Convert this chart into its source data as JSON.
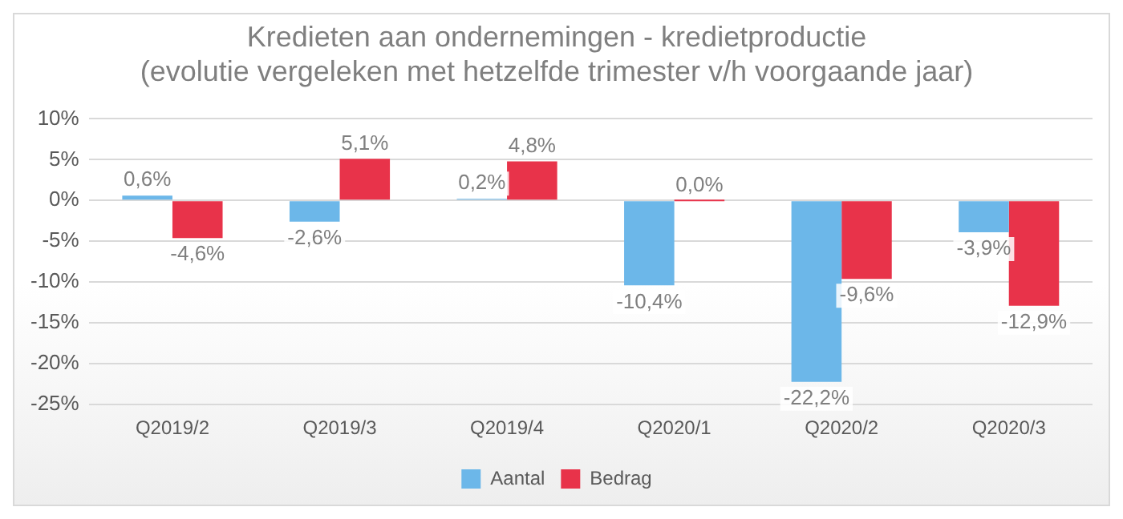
{
  "chart_data": {
    "type": "bar",
    "title": [
      "Kredieten aan ondernemingen - kredietproductie",
      "(evolutie vergeleken met hetzelfde trimester v/h voorgaande jaar)"
    ],
    "categories": [
      "Q2019/2",
      "Q2019/3",
      "Q2019/4",
      "Q2020/1",
      "Q2020/2",
      "Q2020/3"
    ],
    "series": [
      {
        "name": "Aantal",
        "color": "#6cb7e9",
        "values": [
          0.6,
          -2.6,
          0.2,
          -10.4,
          -22.2,
          -3.9
        ],
        "value_labels": [
          "0,6%",
          "-2,6%",
          "0,2%",
          "-10,4%",
          "-22,2%",
          "-3,9%"
        ]
      },
      {
        "name": "Bedrag",
        "color": "#e8334a",
        "values": [
          -4.6,
          5.1,
          4.8,
          0.0,
          -9.6,
          -12.9
        ],
        "value_labels": [
          "-4,6%",
          "5,1%",
          "4,8%",
          "0,0%",
          "-9,6%",
          "-12,9%"
        ]
      }
    ],
    "ylim": [
      -25,
      10
    ],
    "yticks": [
      {
        "value": -25,
        "label": "-25%"
      },
      {
        "value": -20,
        "label": "-20%"
      },
      {
        "value": -15,
        "label": "-15%"
      },
      {
        "value": -10,
        "label": "-10%"
      },
      {
        "value": -5,
        "label": "-5%"
      },
      {
        "value": 0,
        "label": "0%"
      },
      {
        "value": 5,
        "label": "5%"
      },
      {
        "value": 10,
        "label": "10%"
      }
    ],
    "grid": "y",
    "legend": "bottom"
  }
}
